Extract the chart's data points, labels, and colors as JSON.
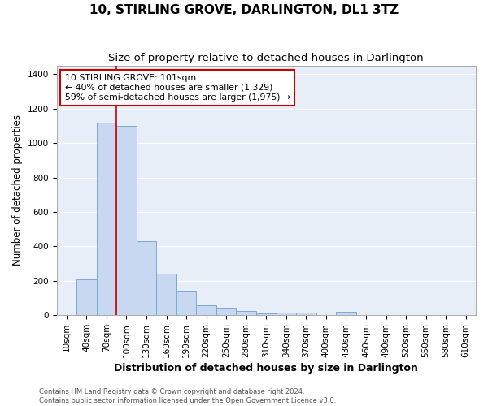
{
  "title": "10, STIRLING GROVE, DARLINGTON, DL1 3TZ",
  "subtitle": "Size of property relative to detached houses in Darlington",
  "xlabel": "Distribution of detached houses by size in Darlington",
  "ylabel": "Number of detached properties",
  "categories": [
    "10sqm",
    "40sqm",
    "70sqm",
    "100sqm",
    "130sqm",
    "160sqm",
    "190sqm",
    "220sqm",
    "250sqm",
    "280sqm",
    "310sqm",
    "340sqm",
    "370sqm",
    "400sqm",
    "430sqm",
    "460sqm",
    "490sqm",
    "520sqm",
    "550sqm",
    "580sqm",
    "610sqm"
  ],
  "values": [
    0,
    210,
    1120,
    1100,
    430,
    240,
    145,
    58,
    42,
    25,
    10,
    15,
    15,
    0,
    20,
    0,
    0,
    0,
    0,
    0,
    0
  ],
  "bar_color": "#c8d8f0",
  "bar_edge_color": "#7aaad0",
  "background_color": "#e8eef8",
  "grid_color": "#ffffff",
  "property_line_color": "#cc0000",
  "property_line_index": 3,
  "annotation_text": "10 STIRLING GROVE: 101sqm\n← 40% of detached houses are smaller (1,329)\n59% of semi-detached houses are larger (1,975) →",
  "annotation_box_color": "#cc0000",
  "ylim": [
    0,
    1450
  ],
  "yticks": [
    0,
    200,
    400,
    600,
    800,
    1000,
    1200,
    1400
  ],
  "footer_text": "Contains HM Land Registry data © Crown copyright and database right 2024.\nContains public sector information licensed under the Open Government Licence v3.0.",
  "title_fontsize": 11,
  "subtitle_fontsize": 9.5,
  "xlabel_fontsize": 9,
  "ylabel_fontsize": 8.5,
  "tick_fontsize": 7.5,
  "footer_fontsize": 6,
  "fig_facecolor": "#ffffff"
}
